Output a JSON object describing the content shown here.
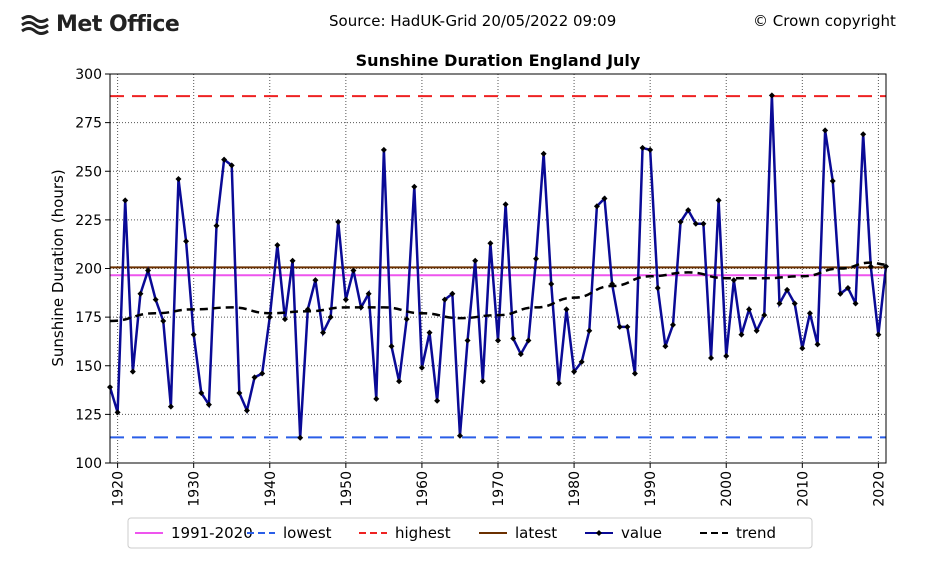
{
  "header": {
    "logo_text": "Met Office",
    "source": "Source: HadUK-Grid 20/05/2022 09:09",
    "copyright": "© Crown copyright"
  },
  "chart_data": {
    "type": "line",
    "title": "Sunshine Duration England July",
    "xlabel": "",
    "ylabel": "Sunshine Duration (hours)",
    "ylim": [
      100,
      300
    ],
    "xlim": [
      1919,
      2021
    ],
    "yticks": [
      100,
      125,
      150,
      175,
      200,
      225,
      250,
      275,
      300
    ],
    "xticks": [
      1920,
      1930,
      1940,
      1950,
      1960,
      1970,
      1980,
      1990,
      2000,
      2010,
      2020
    ],
    "grid": true,
    "legend_position": "bottom",
    "start_year": 1919,
    "values": [
      139,
      126,
      235,
      147,
      187,
      199,
      184,
      173,
      129,
      246,
      214,
      166,
      136,
      130,
      222,
      256,
      253,
      136,
      127,
      144,
      146,
      175,
      212,
      174,
      204,
      113,
      179,
      194,
      167,
      175,
      224,
      184,
      199,
      180,
      187,
      133,
      261,
      160,
      142,
      174,
      242,
      149,
      167,
      132,
      184,
      187,
      114,
      163,
      204,
      142,
      213,
      163,
      233,
      164,
      156,
      163,
      205,
      259,
      192,
      141,
      179,
      147,
      152,
      168,
      232,
      236,
      192,
      170,
      170,
      146,
      262,
      261,
      190,
      160,
      171,
      224,
      230,
      223,
      223,
      154,
      235,
      155,
      194,
      166,
      179,
      168,
      176,
      289,
      182,
      189,
      182,
      159,
      177,
      161,
      271,
      245,
      187,
      190,
      182,
      269,
      201,
      166,
      201
    ],
    "trend": {
      "years": [
        1919,
        1925,
        1930,
        1935,
        1940,
        1945,
        1950,
        1955,
        1960,
        1965,
        1970,
        1975,
        1980,
        1985,
        1990,
        1995,
        2000,
        2005,
        2010,
        2015,
        2019,
        2021
      ],
      "values": [
        173,
        177,
        179,
        180,
        177,
        178,
        180,
        180,
        177,
        174.5,
        176,
        180,
        185,
        191,
        196,
        198,
        195,
        195,
        196,
        200,
        203,
        202
      ]
    },
    "reference_lines": {
      "mean_1991_2020": 196.5,
      "lowest": 113.2,
      "highest": 288.6,
      "latest": 200.6
    },
    "legend": [
      {
        "label": "1991-2020",
        "color": "#ee55ee",
        "style": "solid"
      },
      {
        "label": "lowest",
        "color": "#2a5ee8",
        "style": "dashed"
      },
      {
        "label": "highest",
        "color": "#ee2222",
        "style": "dashed"
      },
      {
        "label": "latest",
        "color": "#6b3000",
        "style": "solid"
      },
      {
        "label": "value",
        "color": "#0a0a96",
        "style": "marker"
      },
      {
        "label": "trend",
        "color": "#000000",
        "style": "dashed"
      }
    ]
  }
}
